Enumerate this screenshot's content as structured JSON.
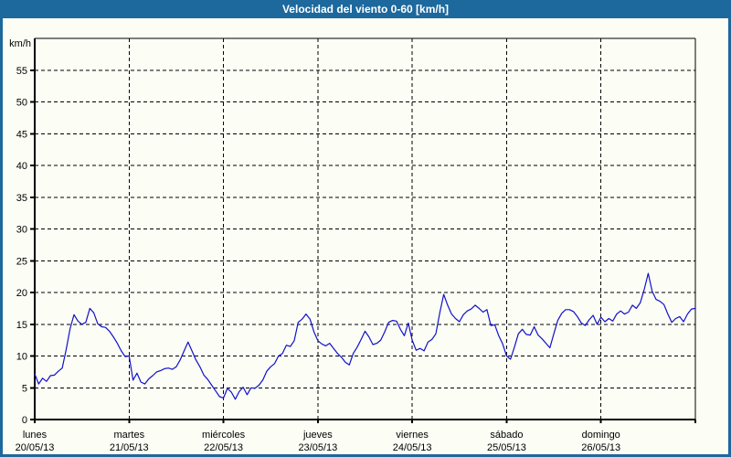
{
  "window": {
    "title": "Velocidad del viento 0-60 [km/h]"
  },
  "colors": {
    "titlebar": "#1d689c",
    "title_text": "#ffffff",
    "plot_background": "#fcfdf5",
    "axis": "#000000",
    "grid": "#000000",
    "line": "#1111cc"
  },
  "chart_data": {
    "type": "line",
    "title": "Velocidad del viento 0-60 [km/h]",
    "ylabel": "km/h",
    "ylim": [
      0,
      60
    ],
    "yticks": [
      0,
      5,
      10,
      15,
      20,
      25,
      30,
      35,
      40,
      45,
      50,
      55
    ],
    "grid": "dashed",
    "legend": "none",
    "x_unit": "hours",
    "samples_per_day": 24,
    "days": [
      {
        "label": "lunes",
        "date": "20/05/13",
        "values": [
          7.2,
          5.6,
          6.5,
          6.0,
          6.9,
          7.0,
          7.6,
          8.1,
          11.0,
          14.3,
          16.5,
          15.5,
          15.0,
          15.3,
          17.5,
          16.8,
          15.1,
          14.6,
          14.5,
          13.9,
          13.0,
          12.0,
          10.8,
          9.9
        ]
      },
      {
        "label": "martes",
        "date": "21/05/13",
        "values": [
          10.0,
          6.2,
          7.3,
          5.9,
          5.6,
          6.4,
          6.9,
          7.5,
          7.7,
          8.0,
          8.1,
          7.9,
          8.3,
          9.4,
          10.8,
          12.2,
          10.8,
          9.4,
          8.3,
          7.0,
          6.3,
          5.4,
          4.5,
          3.6
        ]
      },
      {
        "label": "miércoles",
        "date": "22/05/13",
        "values": [
          3.4,
          4.9,
          4.3,
          3.2,
          4.4,
          5.1,
          3.9,
          5.0,
          4.9,
          5.4,
          6.2,
          7.6,
          8.3,
          8.8,
          10.0,
          10.4,
          11.7,
          11.5,
          12.4,
          15.3,
          15.8,
          16.6,
          15.8,
          13.8
        ]
      },
      {
        "label": "jueves",
        "date": "23/05/13",
        "values": [
          12.4,
          11.9,
          11.6,
          12.0,
          11.2,
          10.4,
          9.8,
          9.0,
          8.6,
          10.4,
          11.4,
          12.6,
          13.9,
          13.0,
          11.8,
          12.0,
          12.5,
          13.8,
          15.3,
          15.6,
          15.5,
          14.2,
          13.2,
          15.2
        ]
      },
      {
        "label": "viernes",
        "date": "24/05/13",
        "values": [
          12.5,
          10.9,
          11.2,
          10.8,
          12.2,
          12.6,
          13.5,
          16.8,
          19.7,
          18.0,
          16.6,
          15.9,
          15.4,
          16.5,
          17.1,
          17.4,
          18.0,
          17.5,
          16.9,
          17.3,
          14.8,
          14.9,
          13.2,
          11.9
        ]
      },
      {
        "label": "sábado",
        "date": "25/05/13",
        "values": [
          10.0,
          9.5,
          11.4,
          13.5,
          14.2,
          13.4,
          13.3,
          14.6,
          13.3,
          12.7,
          12.0,
          11.3,
          13.5,
          15.6,
          16.7,
          17.3,
          17.3,
          17.0,
          16.2,
          15.2,
          14.8,
          15.7,
          16.4,
          15.0
        ]
      },
      {
        "label": "domingo",
        "date": "26/05/13",
        "values": [
          16.1,
          15.4,
          15.9,
          15.5,
          16.6,
          17.1,
          16.6,
          16.9,
          18.0,
          17.5,
          18.4,
          20.5,
          23.0,
          20.2,
          18.9,
          18.6,
          18.1,
          16.6,
          15.3,
          15.9,
          16.2,
          15.4,
          16.6,
          17.4
        ]
      }
    ],
    "closing_value": 17.5
  }
}
